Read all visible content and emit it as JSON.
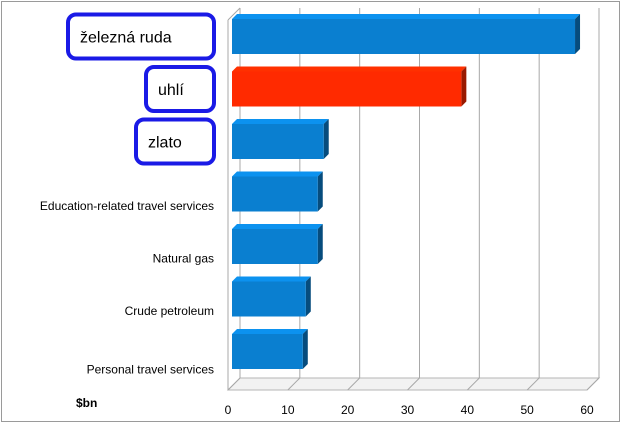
{
  "chart_data": {
    "type": "bar",
    "orientation": "horizontal",
    "unit_label": "$bn",
    "categories": [
      "železná ruda",
      "uhlí",
      "zlato",
      "Education-related travel services",
      "Natural gas",
      "Crude petroleum",
      "Personal travel services"
    ],
    "values": [
      58,
      39,
      16,
      15,
      15,
      13,
      12.5
    ],
    "highlighted": [
      true,
      true,
      true,
      false,
      false,
      false,
      false
    ],
    "bar_colors": [
      "#0a7fd0",
      "#ff2a00",
      "#0a7fd0",
      "#0a7fd0",
      "#0a7fd0",
      "#0a7fd0",
      "#0a7fd0"
    ],
    "xlim": [
      0,
      60
    ],
    "xticks": [
      0,
      10,
      20,
      30,
      40,
      50,
      60
    ],
    "grid": true,
    "callout_border_color": "#1a1ae6"
  }
}
